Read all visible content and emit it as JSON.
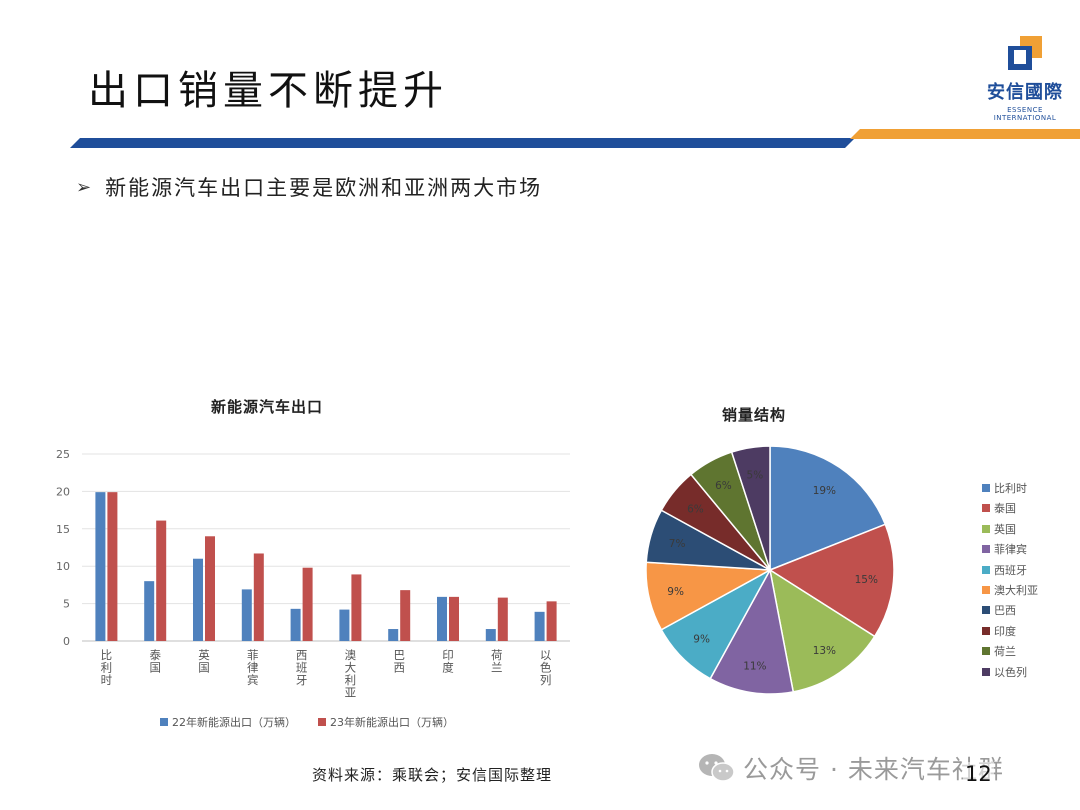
{
  "slide": {
    "title": "出口销量不断提升",
    "bullet": "新能源汽车出口主要是欧洲和亚洲两大市场",
    "source": "资料来源：乘联会；安信国际整理",
    "page_number": "12"
  },
  "logo": {
    "cn": "安信國際",
    "en": "ESSENCE INTERNATIONAL"
  },
  "watermark": {
    "text": "公众号 · 未来汽车社群",
    "icon": "wechat-icon"
  },
  "colors": {
    "brand_blue": "#1f4e9a",
    "accent_orange": "#f0a035"
  },
  "chart_data": [
    {
      "type": "bar",
      "title": "新能源汽车出口",
      "categories": [
        "比利时",
        "泰国",
        "英国",
        "菲律宾",
        "西班牙",
        "澳大利亚",
        "巴西",
        "印度",
        "荷兰",
        "以色列"
      ],
      "series": [
        {
          "name": "22年新能源出口（万辆）",
          "color": "#4f81bd",
          "values": [
            19.9,
            8.0,
            11.0,
            6.9,
            4.3,
            4.2,
            1.6,
            5.9,
            1.6,
            3.9
          ]
        },
        {
          "name": "23年新能源出口（万辆）",
          "color": "#c0504d",
          "values": [
            19.9,
            16.1,
            14.0,
            11.7,
            9.8,
            8.9,
            6.8,
            5.9,
            5.8,
            5.3
          ]
        }
      ],
      "ylim": [
        0,
        25
      ],
      "yticks": [
        0,
        5,
        10,
        15,
        20,
        25
      ],
      "grid": true,
      "legend": "bottom"
    },
    {
      "type": "pie",
      "title": "销量结构",
      "labels": [
        "比利时",
        "泰国",
        "英国",
        "菲律宾",
        "西班牙",
        "澳大利亚",
        "巴西",
        "印度",
        "荷兰",
        "以色列"
      ],
      "values": [
        19,
        15,
        13,
        11,
        9,
        9,
        7,
        6,
        6,
        5
      ],
      "value_labels": [
        "19%",
        "15%",
        "13%",
        "11%",
        "9%",
        "9%",
        "7%",
        "6%",
        "6%",
        "5%"
      ],
      "colors": [
        "#4f81bd",
        "#c0504d",
        "#9bbb59",
        "#8064a2",
        "#4bacc6",
        "#f79646",
        "#2c4d75",
        "#772c2a",
        "#5f7530",
        "#4d3b62"
      ],
      "legend": "right"
    }
  ]
}
